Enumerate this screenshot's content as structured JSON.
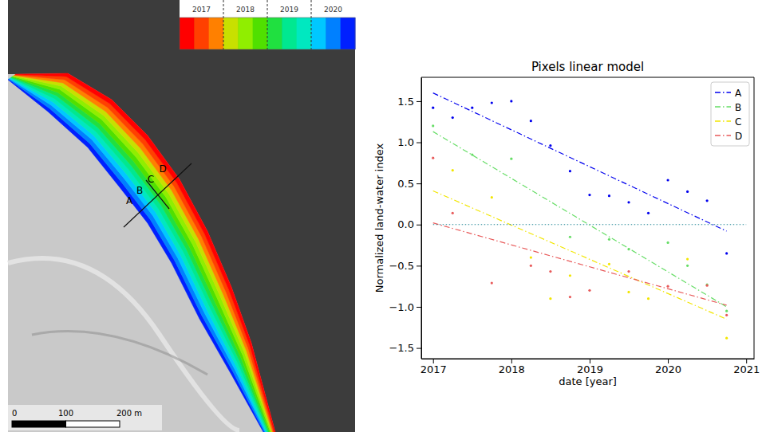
{
  "map": {
    "colorbar": {
      "range": [
        2017,
        2021
      ],
      "ticks": [
        {
          "value": 2017.5,
          "label": "2017"
        },
        {
          "value": 2018.5,
          "label": "2018"
        },
        {
          "value": 2019.5,
          "label": "2019"
        },
        {
          "value": 2020.5,
          "label": "2020"
        }
      ],
      "boundaries": [
        2018,
        2019,
        2020
      ],
      "colors": [
        "#ff0000",
        "#ff4000",
        "#ff8000",
        "#c8e000",
        "#90ee00",
        "#50e000",
        "#20e040",
        "#00e890",
        "#00e8c0",
        "#00c8ff",
        "#0080ff",
        "#0020ff"
      ]
    },
    "profile_labels": [
      "A",
      "B",
      "C",
      "D"
    ],
    "scale_bar": {
      "range": [
        0,
        200
      ],
      "ticks": [
        {
          "value": 0,
          "label": "0"
        },
        {
          "value": 100,
          "label": "100"
        },
        {
          "value": 200,
          "label": "200 m"
        }
      ]
    }
  },
  "chart_data": {
    "type": "scatter",
    "title": "Pixels linear model",
    "x_label": "date [year]",
    "y_label": "Normalized land-water index",
    "xlim": [
      2016.85,
      2021.1
    ],
    "ylim": [
      -1.63,
      1.79
    ],
    "xticks": [
      2017,
      2018,
      2019,
      2020,
      2021
    ],
    "yticks": [
      {
        "value": -1.5,
        "label": "−1.5"
      },
      {
        "value": -1.0,
        "label": "−1.0"
      },
      {
        "value": -0.5,
        "label": "−0.5"
      },
      {
        "value": 0.0,
        "label": "0.0"
      },
      {
        "value": 0.5,
        "label": "0.5"
      },
      {
        "value": 1.0,
        "label": "1.0"
      },
      {
        "value": 1.5,
        "label": "1.5"
      }
    ],
    "legend": "upper right",
    "series": [
      {
        "name": "A",
        "color": "#0000ee",
        "type": "line",
        "line_style": "dashdot",
        "x": [
          2017,
          2020.75
        ],
        "values": [
          1.6,
          -0.08
        ]
      },
      {
        "name": "B",
        "color": "#66dd66",
        "type": "line",
        "line_style": "dashdot",
        "x": [
          2017,
          2020.75
        ],
        "values": [
          1.13,
          -1.0
        ]
      },
      {
        "name": "C",
        "color": "#f2e600",
        "type": "line",
        "line_style": "dashdot",
        "x": [
          2017,
          2020.75
        ],
        "values": [
          0.41,
          -1.15
        ]
      },
      {
        "name": "D",
        "color": "#e85a5a",
        "type": "line",
        "line_style": "dashdot",
        "x": [
          2017,
          2020.75
        ],
        "values": [
          0.02,
          -0.98
        ]
      },
      {
        "color": "#2a8a9a",
        "type": "line",
        "line_style": "dotted",
        "x": [
          2017,
          2021
        ],
        "values": [
          0,
          0
        ]
      },
      {
        "color": "#0000ee",
        "type": "scatter",
        "marker": "point",
        "x": [
          2017.0,
          2017.25,
          2017.5,
          2017.75,
          2018.0,
          2018.25,
          2018.5,
          2018.75,
          2019.0,
          2019.25,
          2019.5,
          2019.75,
          2020.0,
          2020.25,
          2020.5,
          2020.75
        ],
        "values": [
          1.42,
          1.3,
          1.42,
          1.48,
          1.5,
          1.26,
          0.96,
          0.65,
          0.36,
          0.35,
          0.27,
          0.14,
          0.54,
          0.4,
          0.29,
          -0.35
        ]
      },
      {
        "color": "#66dd66",
        "type": "scatter",
        "marker": "point",
        "x": [
          2017.0,
          2017.5,
          2018.0,
          2018.75,
          2019.25,
          2019.5,
          2020.0,
          2020.25,
          2020.5,
          2020.75
        ],
        "values": [
          1.2,
          0.85,
          0.8,
          -0.15,
          -0.18,
          -0.3,
          -0.22,
          -0.5,
          -0.73,
          -1.05
        ]
      },
      {
        "color": "#f2e600",
        "type": "scatter",
        "marker": "point",
        "x": [
          2017.25,
          2017.75,
          2018.25,
          2018.5,
          2018.75,
          2019.25,
          2019.5,
          2019.75,
          2020.25,
          2020.75
        ],
        "values": [
          0.66,
          0.33,
          -0.4,
          -0.9,
          -0.62,
          -0.48,
          -0.82,
          -0.9,
          -0.42,
          -1.38
        ]
      },
      {
        "color": "#e85a5a",
        "type": "scatter",
        "marker": "point",
        "x": [
          2017.0,
          2017.25,
          2017.75,
          2018.25,
          2018.5,
          2018.75,
          2019.0,
          2019.5,
          2020.0,
          2020.5,
          2020.75
        ],
        "values": [
          0.81,
          0.14,
          -0.71,
          -0.5,
          -0.57,
          -0.88,
          -0.8,
          -0.57,
          -0.75,
          -0.74,
          -1.1
        ]
      }
    ]
  }
}
